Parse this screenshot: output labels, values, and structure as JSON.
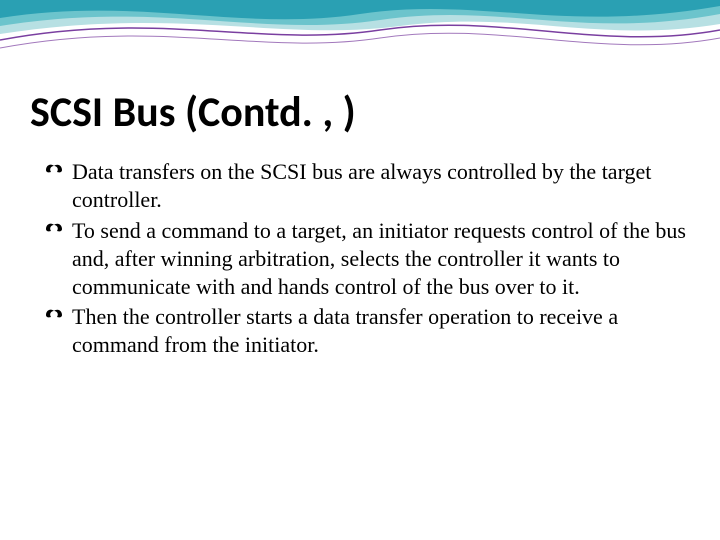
{
  "slide": {
    "title": "SCSI Bus (Contd. , )",
    "title_fontsize": 42,
    "title_color": "#000000",
    "body_fontsize": 22,
    "body_color": "#000000",
    "font_family_title": "Calibri, 'Segoe UI', Arial, sans-serif",
    "font_family_body": "Georgia, 'Times New Roman', serif",
    "bullets": [
      "Data transfers on the SCSI bus are always controlled by the target controller.",
      "To send a command to a target, an initiator requests control of the bus and, after winning arbitration, selects the controller it wants to communicate with and hands control of the bus over to it.",
      "Then the controller starts a data transfer operation to receive a command from the initiator."
    ],
    "wave": {
      "colors": [
        "#2aa0b3",
        "#6cc4cc",
        "#b7e0e3"
      ],
      "line_color": "#7a3fa0",
      "background": "#ffffff"
    }
  }
}
